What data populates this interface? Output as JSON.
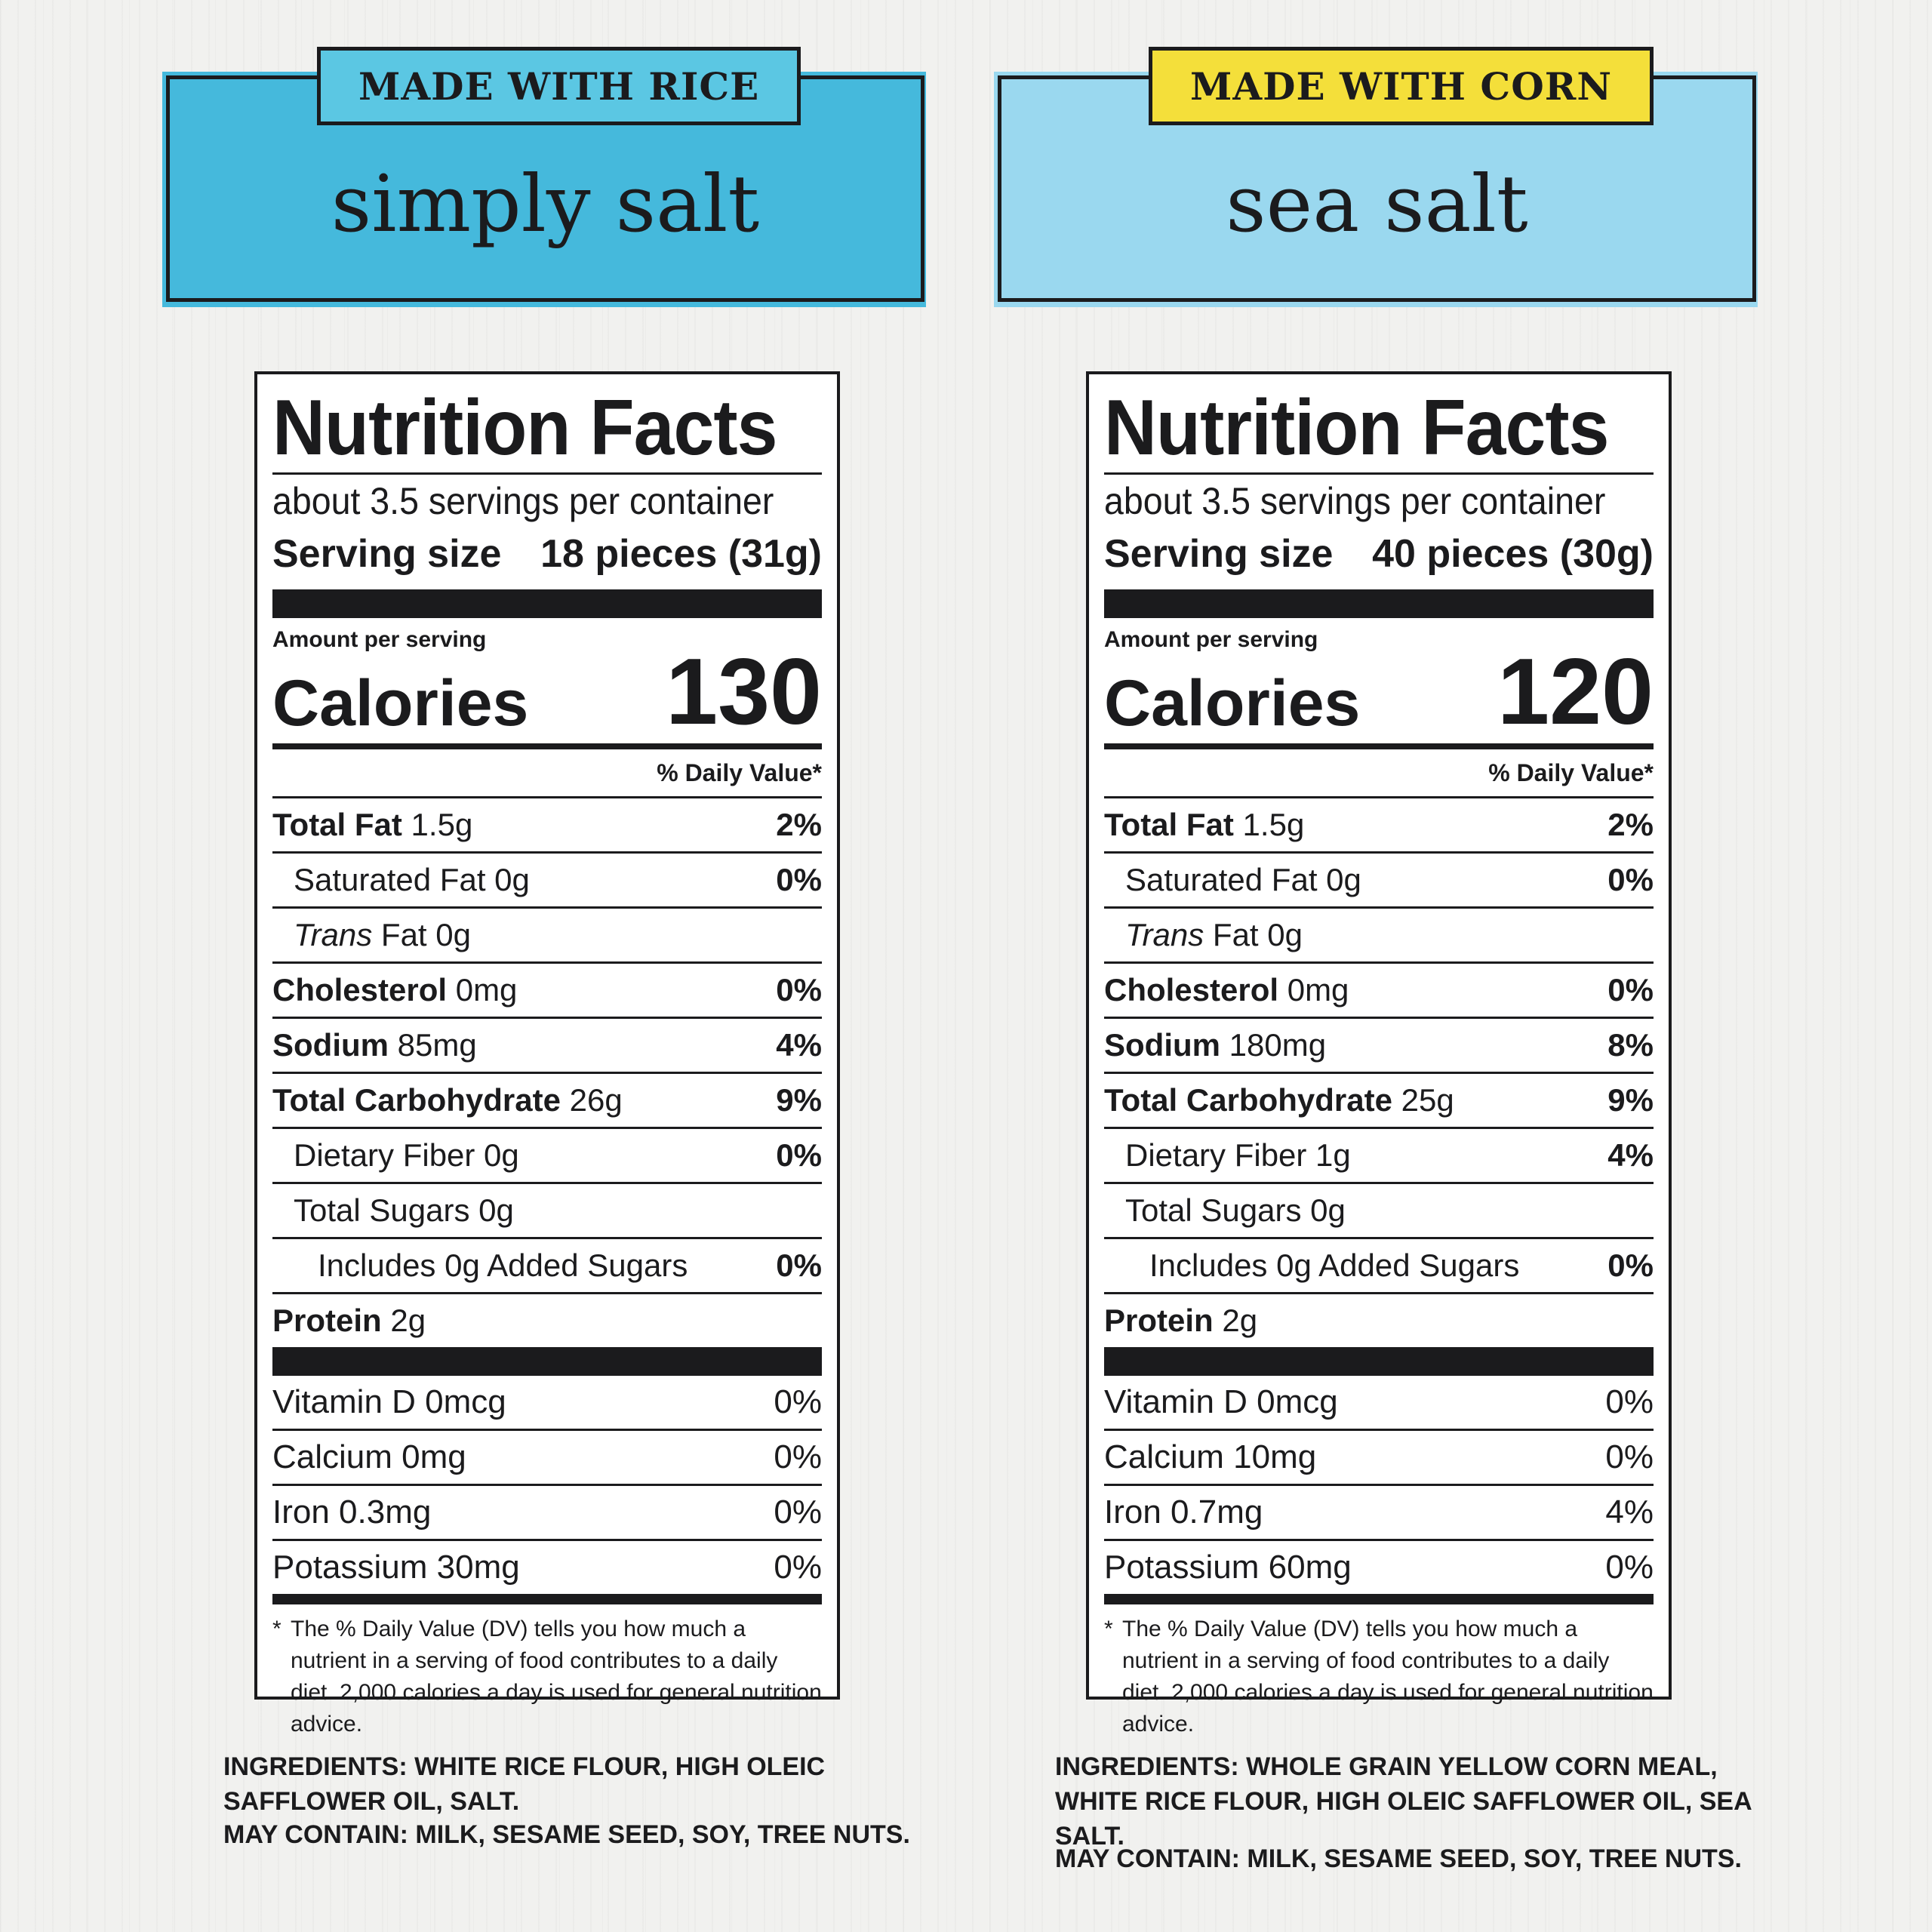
{
  "products": [
    {
      "tag": "MADE WITH RICE",
      "tag_color": "#5bc7e3",
      "banner_color": "#45b9dc",
      "flavor": "simply salt",
      "label": {
        "title": "Nutrition Facts",
        "servings_per_container": "about 3.5 servings per container",
        "serving_size_label": "Serving size",
        "serving_size_value": "18 pieces (31g)",
        "amount_per_serving": "Amount per serving",
        "calories_label": "Calories",
        "calories_value": "130",
        "dv_header": "% Daily Value*",
        "nutrients": [
          {
            "name": "Total Fat",
            "amount": " 1.5g",
            "pct": "2%"
          },
          {
            "name": "",
            "amount": "Saturated Fat 0g",
            "pct": "0%"
          },
          {
            "name": "",
            "amount_italic": "Trans",
            "amount": " Fat 0g",
            "pct": ""
          },
          {
            "name": "Cholesterol",
            "amount": " 0mg",
            "pct": "0%"
          },
          {
            "name": "Sodium",
            "amount": " 85mg",
            "pct": "4%"
          },
          {
            "name": "Total Carbohydrate",
            "amount": " 26g",
            "pct": "9%"
          },
          {
            "name": "",
            "amount": "Dietary Fiber 0g",
            "pct": "0%"
          },
          {
            "name": "",
            "amount": "Total Sugars 0g",
            "pct": ""
          },
          {
            "name": "",
            "amount": "Includes 0g Added Sugars",
            "pct": "0%"
          },
          {
            "name": "Protein",
            "amount": " 2g",
            "pct": ""
          }
        ],
        "vitamins": [
          {
            "name": "Vitamin D 0mcg",
            "pct": "0%"
          },
          {
            "name": "Calcium 0mg",
            "pct": "0%"
          },
          {
            "name": "Iron 0.3mg",
            "pct": "0%"
          },
          {
            "name": "Potassium 30mg",
            "pct": "0%"
          }
        ],
        "footnote_star": "*",
        "footnote": "The % Daily Value (DV) tells you how much a nutrient in a serving of food contributes to a daily diet. 2,000 calories a day is used for general nutrition advice."
      },
      "ingredients": "INGREDIENTS: WHITE RICE FLOUR, HIGH OLEIC SAFFLOWER OIL, SALT.",
      "may_contain": "MAY CONTAIN: MILK, SESAME SEED, SOY, TREE NUTS."
    },
    {
      "tag": "MADE WITH CORN",
      "tag_color": "#f4df3a",
      "banner_color": "#9ad8ef",
      "flavor": "sea salt",
      "label": {
        "title": "Nutrition Facts",
        "servings_per_container": "about 3.5 servings per container",
        "serving_size_label": "Serving size",
        "serving_size_value": "40 pieces (30g)",
        "amount_per_serving": "Amount per serving",
        "calories_label": "Calories",
        "calories_value": "120",
        "dv_header": "% Daily Value*",
        "nutrients": [
          {
            "name": "Total Fat",
            "amount": " 1.5g",
            "pct": "2%"
          },
          {
            "name": "",
            "amount": "Saturated Fat 0g",
            "pct": "0%"
          },
          {
            "name": "",
            "amount_italic": "Trans",
            "amount": " Fat 0g",
            "pct": ""
          },
          {
            "name": "Cholesterol",
            "amount": " 0mg",
            "pct": "0%"
          },
          {
            "name": "Sodium",
            "amount": " 180mg",
            "pct": "8%"
          },
          {
            "name": "Total Carbohydrate",
            "amount": " 25g",
            "pct": "9%"
          },
          {
            "name": "",
            "amount": "Dietary Fiber 1g",
            "pct": "4%"
          },
          {
            "name": "",
            "amount": "Total Sugars 0g",
            "pct": ""
          },
          {
            "name": "",
            "amount": "Includes 0g Added Sugars",
            "pct": "0%"
          },
          {
            "name": "Protein",
            "amount": " 2g",
            "pct": ""
          }
        ],
        "vitamins": [
          {
            "name": "Vitamin D 0mcg",
            "pct": "0%"
          },
          {
            "name": "Calcium 10mg",
            "pct": "0%"
          },
          {
            "name": "Iron 0.7mg",
            "pct": "4%"
          },
          {
            "name": "Potassium 60mg",
            "pct": "0%"
          }
        ],
        "footnote_star": "*",
        "footnote": "The % Daily Value (DV) tells you how much a nutrient in a serving of food contributes to a daily diet. 2,000 calories a day is used for general nutrition advice."
      },
      "ingredients": "INGREDIENTS: WHOLE GRAIN YELLOW CORN MEAL, WHITE RICE FLOUR, HIGH OLEIC SAFFLOWER OIL, SEA SALT.",
      "may_contain": "MAY CONTAIN: MILK, SESAME SEED, SOY, TREE NUTS."
    }
  ]
}
